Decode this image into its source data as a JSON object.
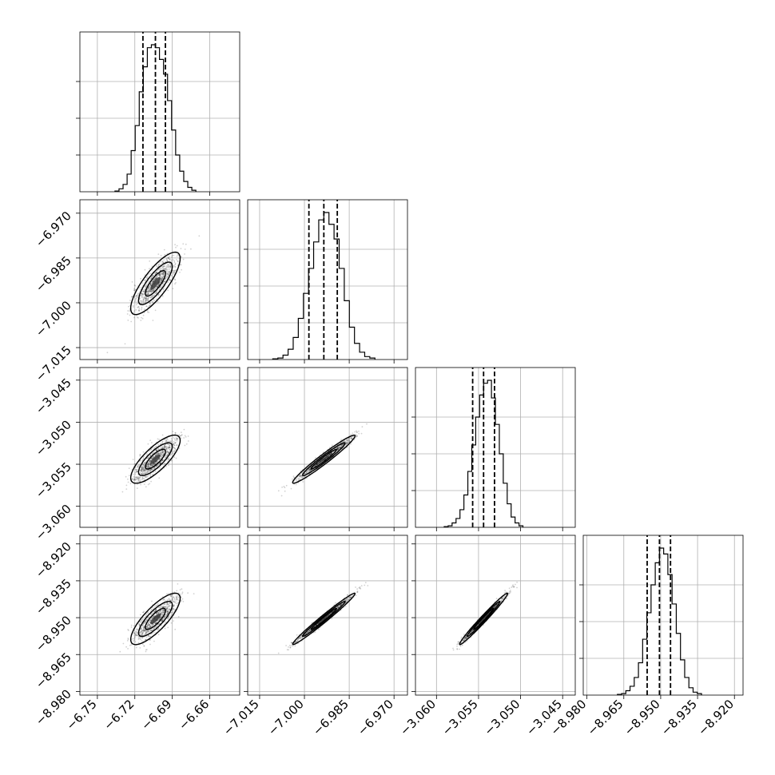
{
  "chart_data": {
    "type": "corner",
    "parameters": [
      {
        "ticks": [
          -6.75,
          -6.72,
          -6.69,
          -6.66
        ],
        "tick_labels": [
          "−6.75",
          "−6.72",
          "−6.69",
          "−6.66"
        ],
        "range": [
          -6.764,
          -6.636
        ],
        "median": -6.7035,
        "q16": -6.7135,
        "q84": -6.6955
      },
      {
        "ticks": [
          -7.015,
          -7.0,
          -6.985,
          -6.97
        ],
        "tick_labels": [
          "−7.015",
          "−7.000",
          "−6.985",
          "−6.970"
        ],
        "range": [
          -7.019,
          -6.9655
        ],
        "median": -6.9935,
        "q16": -6.9985,
        "q84": -6.989
      },
      {
        "ticks": [
          -3.06,
          -3.055,
          -3.05,
          -3.045
        ],
        "tick_labels": [
          "−3.060",
          "−3.055",
          "−3.050",
          "−3.045"
        ],
        "range": [
          -3.0625,
          -3.0435
        ],
        "median": -3.0544,
        "q16": -3.0557,
        "q84": -3.0531
      },
      {
        "ticks": [
          -8.98,
          -8.965,
          -8.95,
          -8.935,
          -8.92
        ],
        "tick_labels": [
          "−8.980",
          "−8.965",
          "−8.950",
          "−8.935",
          "−8.920"
        ],
        "range": [
          -8.9815,
          -8.9165
        ],
        "median": -8.9505,
        "q16": -8.9555,
        "q84": -8.946
      }
    ],
    "histograms": [
      [
        0.5,
        2,
        5,
        12,
        28,
        45,
        68,
        85,
        98,
        100,
        98,
        90,
        80,
        62,
        42,
        25,
        14,
        7,
        3,
        1
      ],
      [
        0.5,
        1,
        3,
        7,
        15,
        28,
        45,
        62,
        80,
        95,
        100,
        92,
        82,
        62,
        40,
        22,
        11,
        5,
        2,
        1
      ],
      [
        0.5,
        1,
        3,
        6,
        12,
        22,
        38,
        56,
        75,
        90,
        98,
        100,
        88,
        70,
        50,
        30,
        16,
        7,
        3,
        1
      ],
      [
        0.5,
        1,
        3,
        6,
        12,
        22,
        38,
        56,
        75,
        90,
        100,
        96,
        82,
        62,
        42,
        24,
        12,
        5,
        2,
        1
      ]
    ],
    "correlations": {
      "1_0": 0.8,
      "2_0": 0.78,
      "2_1": 0.97,
      "3_0": 0.8,
      "3_1": 0.985,
      "3_2": 0.985
    },
    "grid": true
  }
}
